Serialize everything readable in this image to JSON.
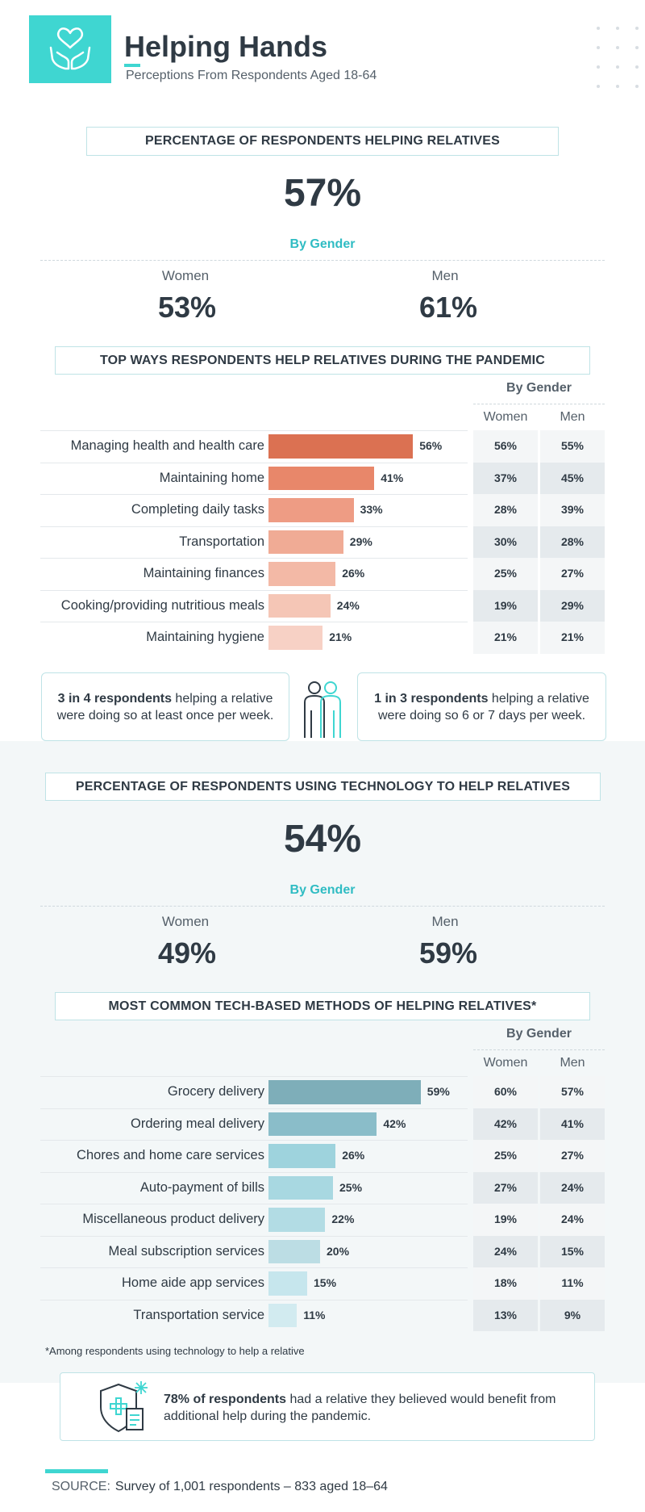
{
  "header": {
    "title": "Helping Hands",
    "subtitle": "Perceptions From Respondents Aged 18-64"
  },
  "section1": {
    "title": "PERCENTAGE OF RESPONDENTS HELPING RELATIVES",
    "value": "57%",
    "by_gender": "By Gender",
    "women_label": "Women",
    "women_value": "53%",
    "men_label": "Men",
    "men_value": "61%"
  },
  "section2": {
    "title": "TOP WAYS RESPONDENTS HELP RELATIVES DURING THE PANDEMIC",
    "by_gender": "By Gender",
    "women_header": "Women",
    "men_header": "Men"
  },
  "callouts": {
    "left_bold": "3 in 4 respondents",
    "left_text": " helping a relative were doing so at least once per week.",
    "right_bold": "1 in 3 respondents",
    "right_text": " helping a relative were doing so 6 or 7 days per week."
  },
  "section3": {
    "title": "PERCENTAGE OF RESPONDENTS USING TECHNOLOGY TO HELP RELATIVES",
    "value": "54%",
    "by_gender": "By Gender",
    "women_label": "Women",
    "women_value": "49%",
    "men_label": "Men",
    "men_value": "59%"
  },
  "section4": {
    "title": "MOST COMMON TECH-BASED METHODS OF HELPING RELATIVES*",
    "by_gender": "By Gender",
    "women_header": "Women",
    "men_header": "Men"
  },
  "footnote": "*Among respondents using technology to help a relative",
  "note": {
    "bold": "78% of respondents",
    "text": " had a relative they believed would benefit from additional help during the pandemic."
  },
  "source": {
    "label": "SOURCE:",
    "text": "Survey of 1,001 respondents – 833 aged 18–64"
  },
  "colors": {
    "accent": "#3fd6d1",
    "orange_scale": [
      "#db7152",
      "#e8876a",
      "#ee9c84",
      "#f0ab95",
      "#f3b9a6",
      "#f5c6b6",
      "#f7d1c5"
    ],
    "teal_scale": [
      "#7eaeb9",
      "#8abdc9",
      "#9ed3dd",
      "#a8d8e1",
      "#b2dce4",
      "#bcdde4",
      "#c6e6ed",
      "#d2ebf0"
    ]
  },
  "chart_data": [
    {
      "type": "bar",
      "title": "TOP WAYS RESPONDENTS HELP RELATIVES DURING THE PANDEMIC",
      "categories": [
        "Managing health and health care",
        "Maintaining home",
        "Completing daily tasks",
        "Transportation",
        "Maintaining finances",
        "Cooking/providing nutritious meals",
        "Maintaining hygiene"
      ],
      "values": [
        56,
        41,
        33,
        29,
        26,
        24,
        21
      ],
      "labels": [
        "56%",
        "41%",
        "33%",
        "29%",
        "26%",
        "24%",
        "21%"
      ],
      "women": [
        "56%",
        "37%",
        "28%",
        "30%",
        "25%",
        "19%",
        "21%"
      ],
      "men": [
        "55%",
        "45%",
        "39%",
        "28%",
        "27%",
        "29%",
        "21%"
      ],
      "xlim": [
        0,
        100
      ]
    },
    {
      "type": "bar",
      "title": "MOST COMMON TECH-BASED METHODS OF HELPING RELATIVES*",
      "categories": [
        "Grocery delivery",
        "Ordering meal delivery",
        "Chores and home care services",
        "Auto-payment of bills",
        "Miscellaneous product delivery",
        "Meal subscription services",
        "Home aide app services",
        "Transportation service"
      ],
      "values": [
        59,
        42,
        26,
        25,
        22,
        20,
        15,
        11
      ],
      "labels": [
        "59%",
        "42%",
        "26%",
        "25%",
        "22%",
        "20%",
        "15%",
        "11%"
      ],
      "women": [
        "60%",
        "42%",
        "25%",
        "27%",
        "19%",
        "24%",
        "18%",
        "13%"
      ],
      "men": [
        "57%",
        "41%",
        "27%",
        "24%",
        "24%",
        "15%",
        "11%",
        "9%"
      ],
      "xlim": [
        0,
        100
      ]
    }
  ]
}
